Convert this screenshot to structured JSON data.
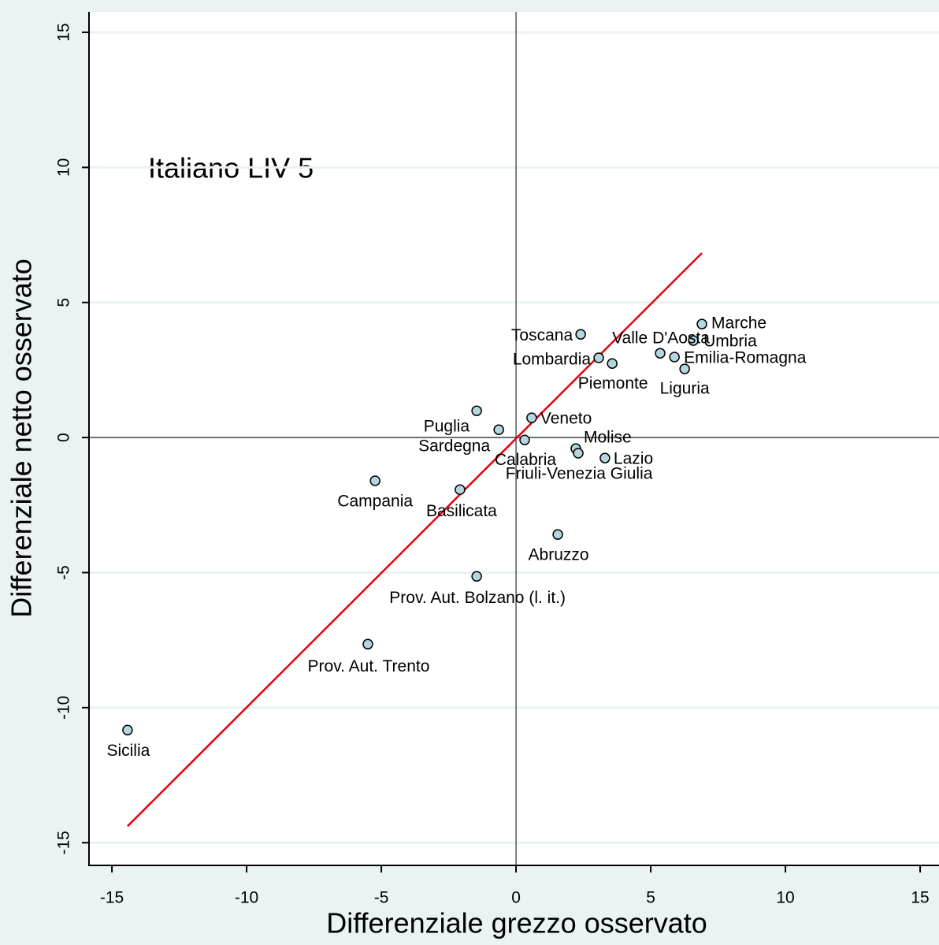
{
  "chart_data": {
    "type": "scatter",
    "annotation": "Italiano LIV 5",
    "x_label": "Differenziale grezzo osservato",
    "y_label": "Differenziale netto osservato",
    "labels": [
      "Marche",
      "Umbria",
      "Valle D'Aosta",
      "Emilia-Romagna",
      "Liguria",
      "Toscana",
      "Lombardia",
      "Piemonte",
      "Veneto",
      "Puglia",
      "Sardegna",
      "Calabria",
      "Molise",
      "Friuli-Venezia Giulia",
      "Lazio",
      "Campania",
      "Basilicata",
      "Abruzzo",
      "Prov. Aut. Bolzano (l. it.)",
      "Prov. Aut. Trento",
      "Sicilia"
    ],
    "x": [
      6.9,
      6.58,
      5.35,
      5.88,
      6.26,
      2.4,
      3.07,
      3.57,
      0.58,
      -1.46,
      -0.64,
      0.32,
      2.22,
      2.31,
      3.3,
      -5.23,
      -2.08,
      1.55,
      -1.46,
      -5.5,
      -14.42
    ],
    "y": [
      4.2,
      3.59,
      3.12,
      2.98,
      2.54,
      3.82,
      2.95,
      2.74,
      0.73,
      0.99,
      0.29,
      -0.09,
      -0.41,
      -0.58,
      -0.76,
      -1.6,
      -1.93,
      -3.59,
      -5.14,
      -7.65,
      -10.83
    ],
    "marker_color": "#b4d6de",
    "fit_line": {
      "x": [
        -14.42,
        6.9
      ],
      "y": [
        -14.39,
        6.83
      ],
      "color": "#e8000b"
    },
    "xline": 0,
    "yline": 0,
    "xlim": [
      -15.85,
      15.7
    ],
    "ylim": [
      -15.84,
      15.76
    ],
    "xticks": [
      -15,
      -10,
      -5,
      0,
      5,
      10,
      15
    ],
    "yticks": [
      -15,
      -10,
      -5,
      0,
      5,
      10,
      15
    ],
    "grid": true
  }
}
